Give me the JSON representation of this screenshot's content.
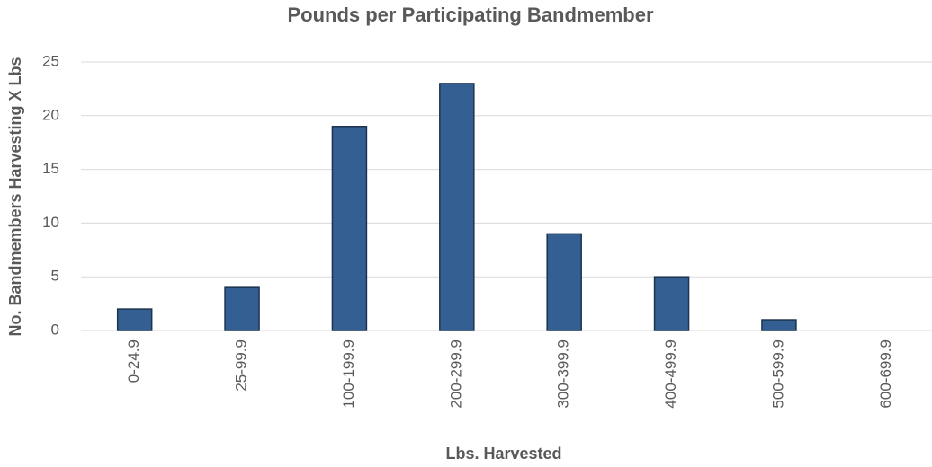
{
  "chart_data": {
    "type": "bar",
    "title": "Pounds per Participating Bandmember",
    "x_label": "Lbs. Harvested",
    "y_label": "No. Bandmembers Harvesting X Lbs",
    "categories": [
      "0-24.9",
      "25-99.9",
      "100-199.9",
      "200-299.9",
      "300-399.9",
      "400-499.9",
      "500-599.9",
      "600-699.9"
    ],
    "values": [
      2,
      4,
      19,
      23,
      9,
      5,
      1,
      0
    ],
    "color": "#335f92",
    "ylim": [
      0,
      25
    ],
    "yticks": [
      0,
      5,
      10,
      15,
      20,
      25
    ],
    "grid": true
  }
}
